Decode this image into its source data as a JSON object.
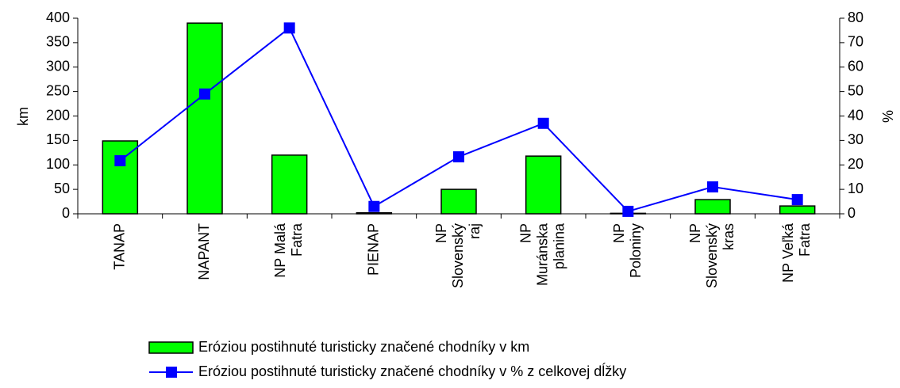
{
  "chart_data": {
    "type": "bar+line",
    "categories": [
      "TANAP",
      "NAPANT",
      "NP Malá\nFatra",
      "PIENAP",
      "NP\nSlovenský\nraj",
      "NP\nMuránska\nplanina",
      "NP\nPoloniny",
      "NP\nSlovenský\nkras",
      "NP Veľká\nFatra"
    ],
    "ylabel": "km",
    "y2label": "%",
    "ylim": [
      0,
      400
    ],
    "yticks": [
      0,
      50,
      100,
      150,
      200,
      250,
      300,
      350,
      400
    ],
    "y2lim": [
      0,
      80
    ],
    "y2ticks": [
      0,
      10,
      20,
      30,
      40,
      50,
      60,
      70,
      80
    ],
    "series": [
      {
        "name": "Eróziou postihnuté turisticky značené chodníky v km",
        "type": "bar",
        "color": "#00ff00",
        "values": [
          149,
          390,
          120,
          2,
          50,
          118,
          1,
          29,
          16
        ]
      },
      {
        "name": "Eróziou postihnuté turisticky značené chodníky v % z celkovej dĺžky",
        "type": "line",
        "axis": "y2",
        "color": "#0000ff",
        "values": [
          21.7,
          49,
          76,
          3,
          23.3,
          37,
          1,
          11,
          5.8
        ]
      }
    ],
    "legend": "bottom"
  }
}
